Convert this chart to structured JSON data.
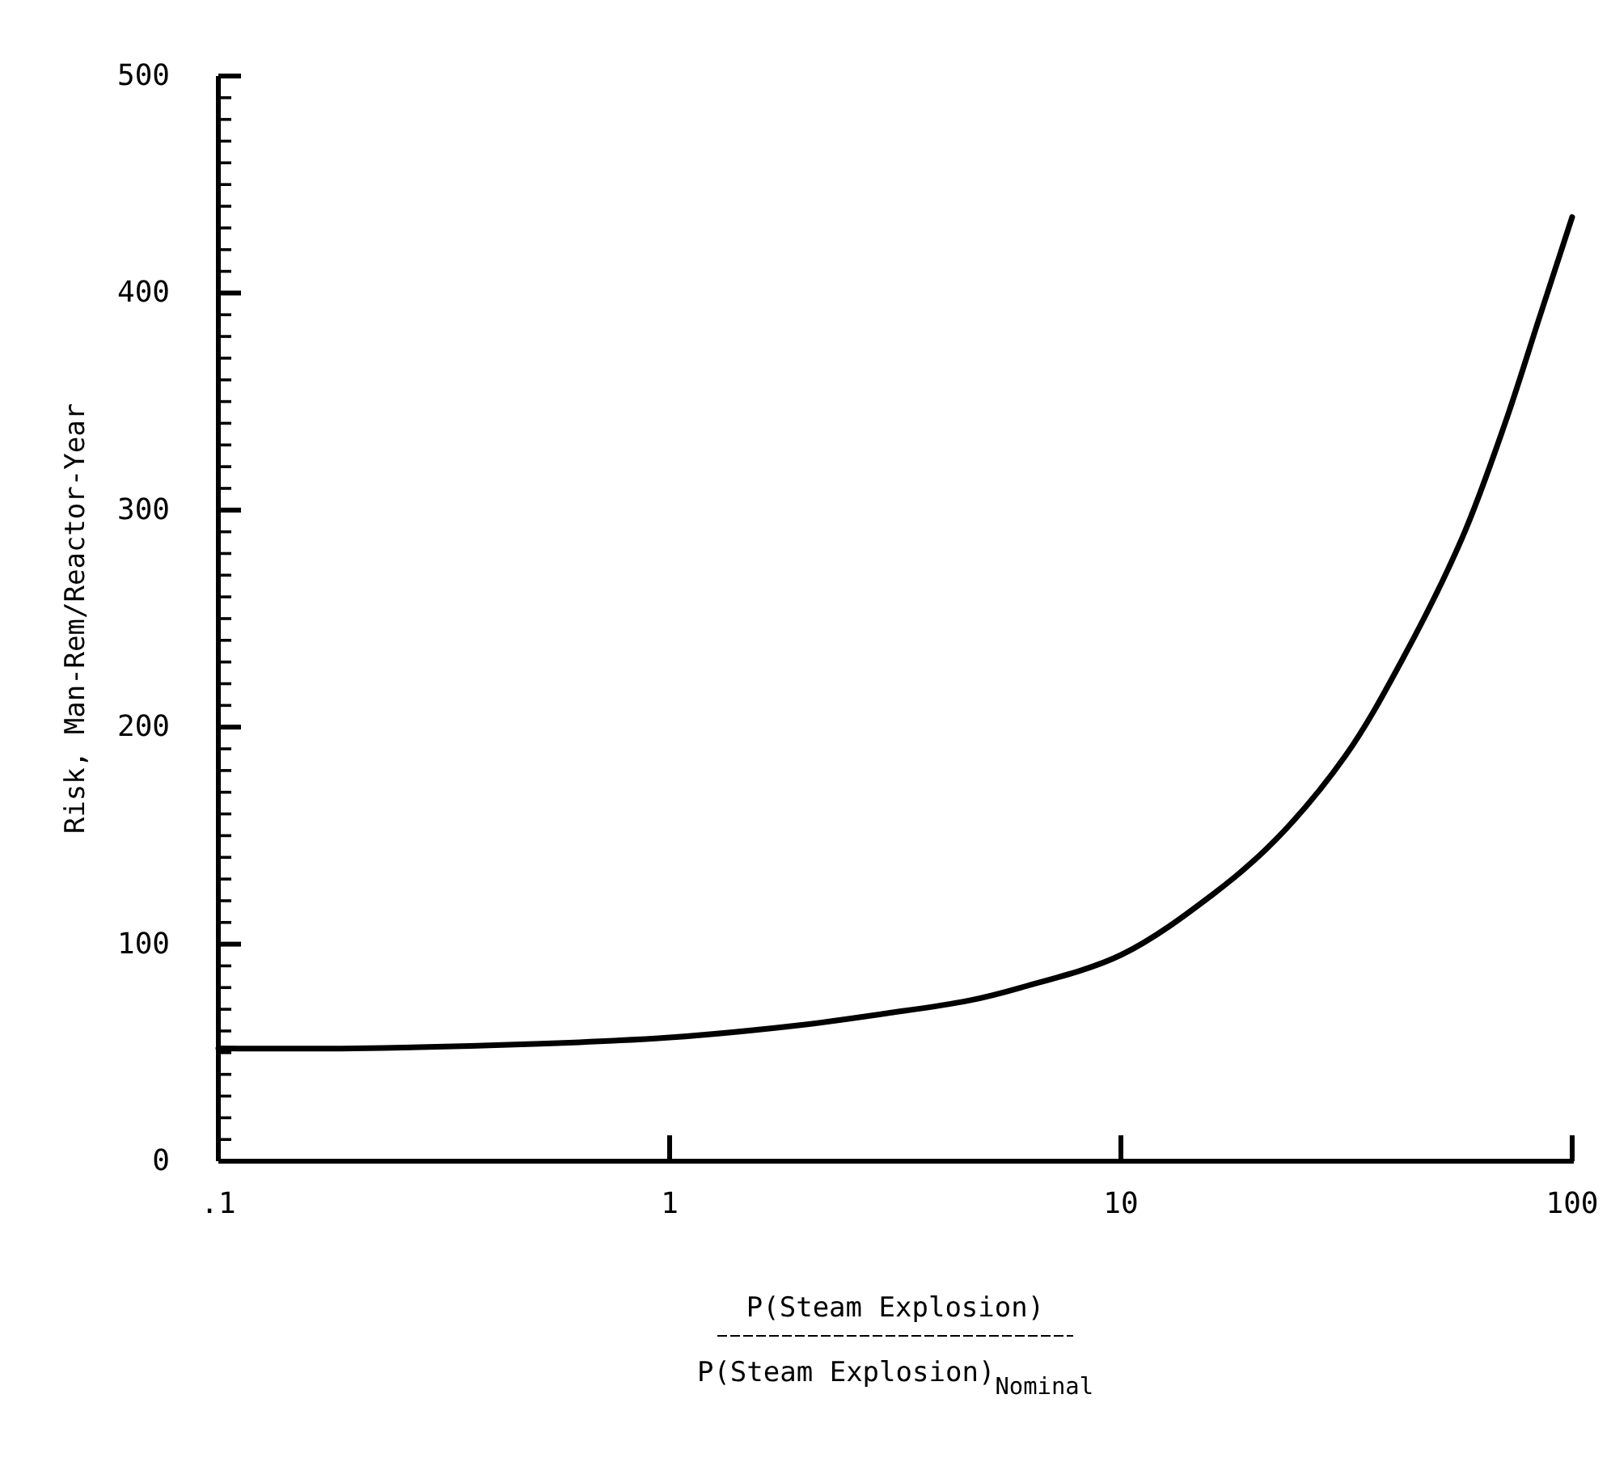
{
  "chart_data": {
    "type": "line",
    "xlabel": "P(Steam Explosion)\nP(Steam Explosion)$_{Nominal}$",
    "ylabel": "Risk, Man-Rem/Reactor-Year",
    "log": "x",
    "xlim": [
      0.1,
      100
    ],
    "xticks": [
      {
        "value": 0.1,
        "label": ".1"
      },
      1,
      10,
      100
    ],
    "ylim": [
      0,
      500
    ],
    "yticks": [
      0,
      {
        "value": 10,
        "label": null
      },
      {
        "value": 20,
        "label": null
      },
      {
        "value": 30,
        "label": null
      },
      {
        "value": 40,
        "label": null
      },
      {
        "value": 50,
        "label": null
      },
      {
        "value": 60,
        "label": null
      },
      {
        "value": 70,
        "label": null
      },
      {
        "value": 80,
        "label": null
      },
      {
        "value": 90,
        "label": null
      },
      100,
      {
        "value": 110,
        "label": null
      },
      {
        "value": 120,
        "label": null
      },
      {
        "value": 130,
        "label": null
      },
      {
        "value": 140,
        "label": null
      },
      {
        "value": 150,
        "label": null
      },
      {
        "value": 160,
        "label": null
      },
      {
        "value": 170,
        "label": null
      },
      {
        "value": 180,
        "label": null
      },
      {
        "value": 190,
        "label": null
      },
      200,
      {
        "value": 210,
        "label": null
      },
      {
        "value": 220,
        "label": null
      },
      {
        "value": 230,
        "label": null
      },
      {
        "value": 240,
        "label": null
      },
      {
        "value": 250,
        "label": null
      },
      {
        "value": 260,
        "label": null
      },
      {
        "value": 270,
        "label": null
      },
      {
        "value": 280,
        "label": null
      },
      {
        "value": 290,
        "label": null
      },
      300,
      {
        "value": 310,
        "label": null
      },
      {
        "value": 320,
        "label": null
      },
      {
        "value": 330,
        "label": null
      },
      {
        "value": 340,
        "label": null
      },
      {
        "value": 350,
        "label": null
      },
      {
        "value": 360,
        "label": null
      },
      {
        "value": 370,
        "label": null
      },
      {
        "value": 380,
        "label": null
      },
      {
        "value": 390,
        "label": null
      },
      400,
      {
        "value": 410,
        "label": null
      },
      {
        "value": 420,
        "label": null
      },
      {
        "value": 430,
        "label": null
      },
      {
        "value": 440,
        "label": null
      },
      {
        "value": 450,
        "label": null
      },
      {
        "value": 460,
        "label": null
      },
      {
        "value": 470,
        "label": null
      },
      {
        "value": 480,
        "label": null
      },
      {
        "value": 490,
        "label": null
      },
      500
    ],
    "series": [
      {
        "color": "#000000",
        "x": [
          0.1,
          0.2,
          0.5,
          1,
          2,
          3,
          4.6,
          6,
          10,
          16,
          22,
          31.5,
          42,
          57,
          71,
          85,
          100
        ],
        "values": [
          52,
          52,
          54,
          57,
          63,
          68,
          74,
          80,
          95,
          123,
          148,
          187,
          231,
          287,
          340,
          390,
          435
        ]
      }
    ]
  }
}
